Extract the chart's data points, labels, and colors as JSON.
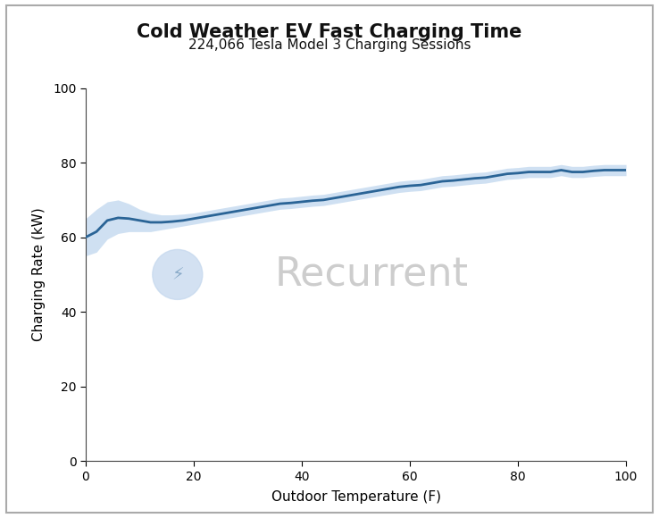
{
  "title": "Cold Weather EV Fast Charging Time",
  "subtitle": "224,066 Tesla Model 3 Charging Sessions",
  "xlabel": "Outdoor Temperature (F)",
  "ylabel": "Charging Rate (kW)",
  "xlim": [
    0,
    100
  ],
  "ylim": [
    0,
    100
  ],
  "xticks": [
    0,
    20,
    40,
    60,
    80,
    100
  ],
  "yticks": [
    0,
    20,
    40,
    60,
    80,
    100
  ],
  "line_color": "#2a6496",
  "fill_color": "#a8c8e8",
  "background_color": "#ffffff",
  "border_color": "#aaaaaa",
  "watermark_text": "Recurrent",
  "watermark_circle_color": "#c5d8ee",
  "watermark_text_color": "#c8c8c8",
  "x": [
    0,
    2,
    4,
    6,
    8,
    10,
    12,
    14,
    16,
    18,
    20,
    22,
    24,
    26,
    28,
    30,
    32,
    34,
    36,
    38,
    40,
    42,
    44,
    46,
    48,
    50,
    52,
    54,
    56,
    58,
    60,
    62,
    64,
    66,
    68,
    70,
    72,
    74,
    76,
    78,
    80,
    82,
    84,
    86,
    88,
    90,
    92,
    94,
    96,
    98,
    100
  ],
  "y_mean": [
    60.0,
    61.5,
    64.5,
    65.2,
    65.0,
    64.5,
    64.0,
    64.0,
    64.2,
    64.5,
    65.0,
    65.5,
    66.0,
    66.5,
    67.0,
    67.5,
    68.0,
    68.5,
    69.0,
    69.2,
    69.5,
    69.8,
    70.0,
    70.5,
    71.0,
    71.5,
    72.0,
    72.5,
    73.0,
    73.5,
    73.8,
    74.0,
    74.5,
    75.0,
    75.2,
    75.5,
    75.8,
    76.0,
    76.5,
    77.0,
    77.2,
    77.5,
    77.5,
    77.5,
    78.0,
    77.5,
    77.5,
    77.8,
    78.0,
    78.0,
    78.0
  ],
  "y_upper": [
    65.0,
    67.5,
    69.5,
    70.0,
    69.0,
    67.5,
    66.5,
    66.0,
    66.0,
    66.2,
    66.5,
    67.0,
    67.5,
    68.0,
    68.5,
    69.0,
    69.5,
    70.0,
    70.5,
    70.7,
    71.0,
    71.3,
    71.5,
    72.0,
    72.5,
    73.0,
    73.5,
    74.0,
    74.5,
    75.0,
    75.3,
    75.5,
    76.0,
    76.5,
    76.7,
    77.0,
    77.3,
    77.5,
    78.0,
    78.5,
    78.7,
    79.0,
    79.0,
    79.0,
    79.5,
    79.0,
    79.0,
    79.3,
    79.5,
    79.5,
    79.5
  ],
  "y_lower": [
    55.0,
    56.0,
    59.5,
    61.0,
    61.5,
    61.5,
    61.5,
    62.0,
    62.5,
    63.0,
    63.5,
    64.0,
    64.5,
    65.0,
    65.5,
    66.0,
    66.5,
    67.0,
    67.5,
    67.7,
    68.0,
    68.3,
    68.5,
    69.0,
    69.5,
    70.0,
    70.5,
    71.0,
    71.5,
    72.0,
    72.3,
    72.5,
    73.0,
    73.5,
    73.7,
    74.0,
    74.3,
    74.5,
    75.0,
    75.5,
    75.7,
    76.0,
    76.0,
    76.0,
    76.5,
    76.0,
    76.0,
    76.3,
    76.5,
    76.5,
    76.5
  ],
  "title_fontsize": 15,
  "subtitle_fontsize": 11,
  "axis_label_fontsize": 11,
  "tick_fontsize": 10,
  "figsize": [
    7.38,
    5.8
  ],
  "dpi": 100
}
